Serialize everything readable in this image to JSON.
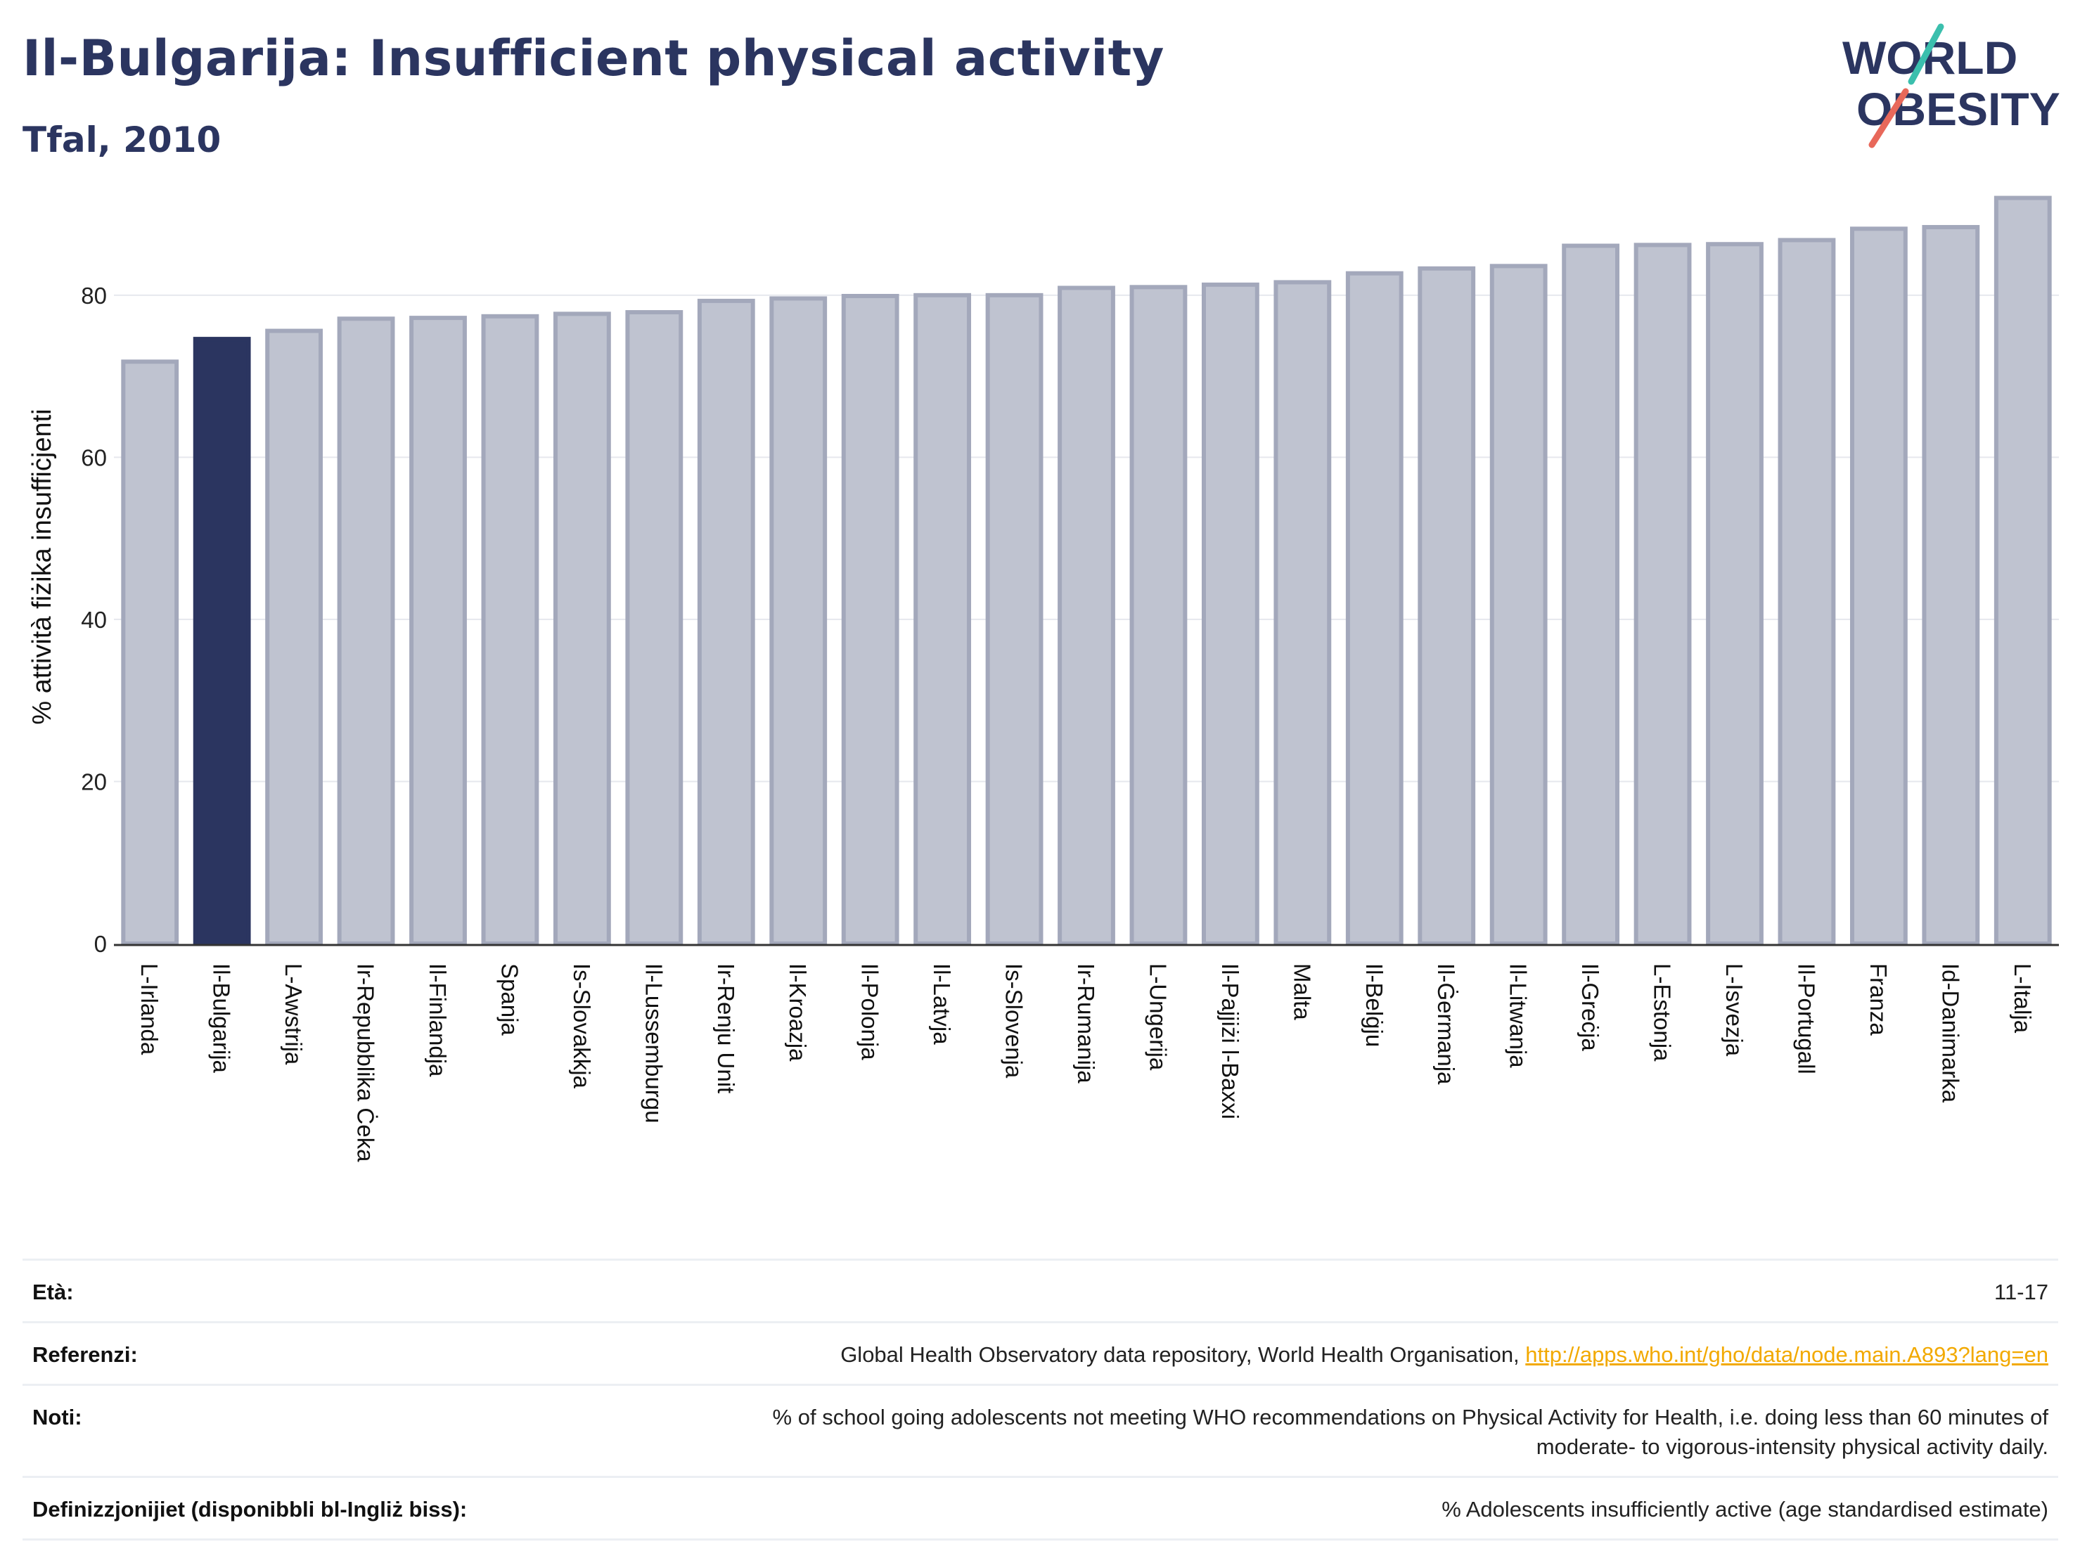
{
  "header": {
    "title": "Il-Bulgarija: Insufficient physical activity",
    "subtitle": "Tfal, 2010"
  },
  "logo": {
    "line1": "WORLD",
    "line2": "OBESITY",
    "slash_colors": [
      "#3bbfad",
      "#e8685a"
    ]
  },
  "colors": {
    "highlight": "#2b3560",
    "bar_fill": "#bfc3d0",
    "bar_stroke": "#a3a8bb",
    "text": "#2b3560"
  },
  "chart_data": {
    "type": "bar",
    "title": "Il-Bulgarija: Insufficient physical activity",
    "subtitle": "Tfal, 2010",
    "ylabel": "% attività fiżika insuffiċjenti",
    "xlabel": "",
    "ylim": [
      0,
      93
    ],
    "yticks": [
      0,
      20,
      40,
      60,
      80
    ],
    "grid": true,
    "highlight": "Il-Bulgarija",
    "categories": [
      "L-Irlanda",
      "Il-Bulgarija",
      "L-Awstrija",
      "Ir-Repubblika Ċeka",
      "Il-Finlandja",
      "Spanja",
      "Is-Slovakkja",
      "Il-Lussemburgu",
      "Ir-Renju Unit",
      "Il-Kroazja",
      "Il-Polonja",
      "Il-Latvja",
      "Is-Slovenja",
      "Ir-Rumanija",
      "L-Ungerija",
      "Il-Pajjiżi l-Baxxi",
      "Malta",
      "Il-Belġju",
      "Il-Ġermanja",
      "Il-Litwanja",
      "Il-Greċja",
      "L-Estonja",
      "L-Isvezja",
      "Il-Portugall",
      "Franza",
      "Id-Danimarka",
      "L-Italja"
    ],
    "values": [
      71.8,
      74.6,
      75.6,
      77.1,
      77.2,
      77.4,
      77.7,
      77.9,
      79.3,
      79.6,
      79.9,
      80.0,
      80.0,
      80.9,
      81.0,
      81.3,
      81.6,
      82.7,
      83.3,
      83.6,
      86.1,
      86.2,
      86.3,
      86.8,
      88.2,
      88.4,
      92.0
    ]
  },
  "meta": {
    "age_label": "Età:",
    "age_value": "11-17",
    "ref_label": "Referenzi:",
    "ref_text": "Global Health Observatory data repository, World Health Organisation, ",
    "ref_link": "http://apps.who.int/gho/data/node.main.A893?lang=en",
    "notes_label": "Noti:",
    "notes_line1": "% of school going adolescents not meeting WHO recommendations on Physical Activity for Health, i.e. doing less than 60 minutes of",
    "notes_line2": "moderate- to vigorous-intensity physical activity daily.",
    "def_label": "Definizzjonijiet (disponibbli bl-Ingliż biss):",
    "def_value": "% Adolescents insufficiently active (age standardised estimate)"
  }
}
